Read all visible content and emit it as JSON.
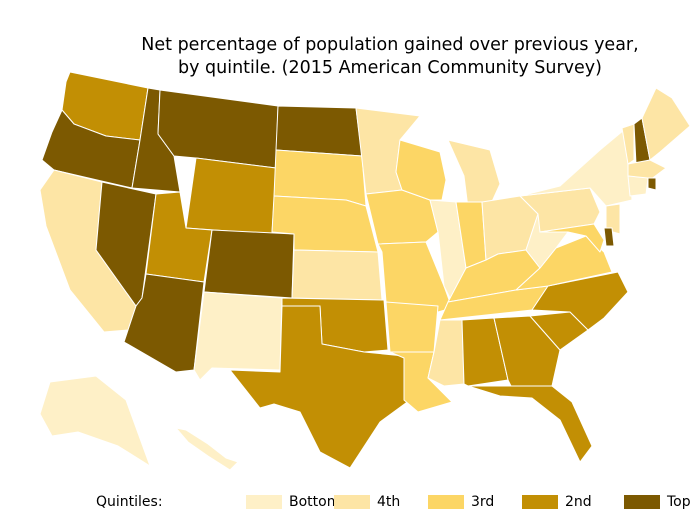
{
  "title": {
    "line1": "Net percentage of population gained over previous year,",
    "line2": "by quintile. (2015 American Community Survey)"
  },
  "legend": {
    "label": "Quintiles:",
    "items": [
      {
        "label": "Bottom",
        "color": "#fef0c7"
      },
      {
        "label": "4th",
        "color": "#fde5a5"
      },
      {
        "label": "3rd",
        "color": "#fcd665"
      },
      {
        "label": "2nd",
        "color": "#c28f04"
      },
      {
        "label": "Top",
        "color": "#7c5901"
      }
    ]
  },
  "chart_data": {
    "type": "choropleth",
    "categories": [
      "Bottom",
      "4th",
      "3rd",
      "2nd",
      "Top"
    ],
    "states": {
      "WA": "2nd",
      "OR": "Top",
      "CA": "4th",
      "NV": "Top",
      "ID": "Top",
      "MT": "Top",
      "WY": "2nd",
      "UT": "2nd",
      "AZ": "Top",
      "CO": "Top",
      "NM": "Bottom",
      "ND": "Top",
      "SD": "3rd",
      "NE": "3rd",
      "KS": "4th",
      "OK": "2nd",
      "TX": "2nd",
      "MN": "4th",
      "IA": "3rd",
      "MO": "3rd",
      "AR": "3rd",
      "LA": "3rd",
      "WI": "3rd",
      "IL": "Bottom",
      "MI": "4th",
      "IN": "3rd",
      "OH": "4th",
      "KY": "3rd",
      "TN": "3rd",
      "MS": "4th",
      "AL": "2nd",
      "GA": "2nd",
      "FL": "2nd",
      "SC": "2nd",
      "NC": "2nd",
      "VA": "3rd",
      "WV": "Bottom",
      "PA": "4th",
      "NY": "Bottom",
      "VT": "4th",
      "NH": "Top",
      "ME": "4th",
      "MA": "4th",
      "RI": "Top",
      "CT": "Bottom",
      "NJ": "4th",
      "DE": "Top",
      "MD": "3rd",
      "AK": "Bottom",
      "HI": "Bottom"
    }
  }
}
